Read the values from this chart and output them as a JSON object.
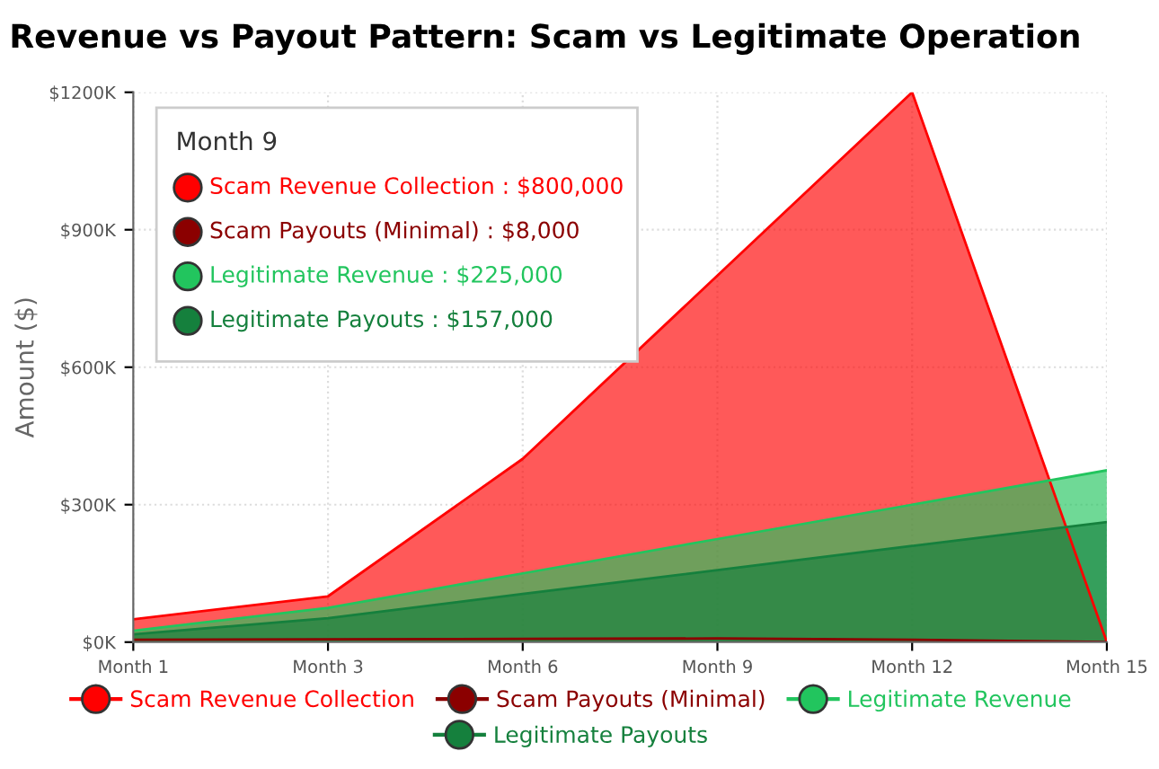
{
  "chart_data": {
    "type": "area",
    "title": "Revenue vs Payout Pattern: Scam vs Legitimate Operation",
    "ylabel": "Amount ($)",
    "categories": [
      "Month 1",
      "Month 3",
      "Month 6",
      "Month 9",
      "Month 12",
      "Month 15"
    ],
    "series": [
      {
        "name": "Scam Revenue Collection",
        "color": "#ff0000",
        "values": [
          50000,
          100000,
          400000,
          800000,
          1200000,
          0
        ]
      },
      {
        "name": "Scam Payouts (Minimal)",
        "color": "#8b0000",
        "values": [
          5000,
          6000,
          7000,
          8000,
          5000,
          0
        ]
      },
      {
        "name": "Legitimate Revenue",
        "color": "#22c55e",
        "values": [
          25000,
          75000,
          150000,
          225000,
          300000,
          375000
        ]
      },
      {
        "name": "Legitimate Payouts",
        "color": "#15803d",
        "values": [
          17000,
          52000,
          105000,
          157000,
          210000,
          262000
        ]
      }
    ],
    "ylim": [
      0,
      1200000
    ],
    "yticks": [
      {
        "value": 0,
        "label": "$0K"
      },
      {
        "value": 300000,
        "label": "$300K"
      },
      {
        "value": 600000,
        "label": "$600K"
      },
      {
        "value": 900000,
        "label": "$900K"
      },
      {
        "value": 1200000,
        "label": "$1200K"
      }
    ],
    "annotations": [
      "Month 9",
      "Scam Revenue Collection : $800,000",
      "Scam Payouts (Minimal) : $8,000",
      "Legitimate Revenue : $225,000",
      "Legitimate Payouts : $157,000"
    ],
    "grid": true,
    "legend": "bottom"
  }
}
